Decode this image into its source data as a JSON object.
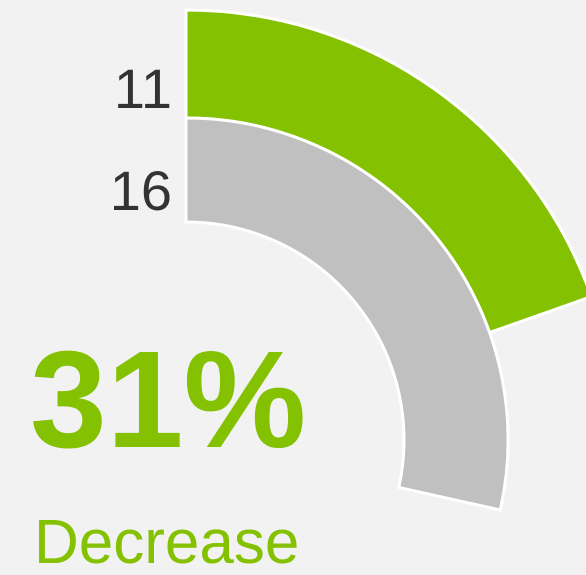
{
  "chart_data": {
    "type": "radial-bar",
    "categories": [
      null,
      null
    ],
    "series": [
      {
        "name": null,
        "values": [
          11,
          16
        ],
        "colors": [
          "#84c100",
          "#c0c0c0"
        ]
      }
    ],
    "change": {
      "value": 31,
      "label": "31%"
    },
    "change_text": "Decrease"
  }
}
